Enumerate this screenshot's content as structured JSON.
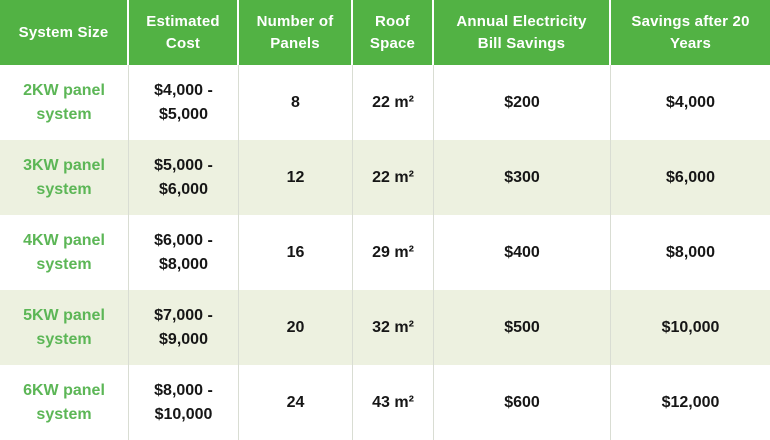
{
  "table": {
    "headers": [
      "System Size",
      "Estimated Cost",
      "Number of Panels",
      "Roof Space",
      "Annual Electricity Bill Savings",
      "Savings after 20 Years"
    ],
    "rows": [
      {
        "system": "2KW panel system",
        "cost": "$4,000 - $5,000",
        "panels": "8",
        "roof": "22 m²",
        "bill_savings": "$200",
        "savings_20yr": "$4,000"
      },
      {
        "system": "3KW panel system",
        "cost": "$5,000 - $6,000",
        "panels": "12",
        "roof": "22 m²",
        "bill_savings": "$300",
        "savings_20yr": "$6,000"
      },
      {
        "system": "4KW panel system",
        "cost": "$6,000 - $8,000",
        "panels": "16",
        "roof": "29 m²",
        "bill_savings": "$400",
        "savings_20yr": "$8,000"
      },
      {
        "system": "5KW panel system",
        "cost": "$7,000 - $9,000",
        "panels": "20",
        "roof": "32 m²",
        "bill_savings": "$500",
        "savings_20yr": "$10,000"
      },
      {
        "system": "6KW panel system",
        "cost": "$8,000 - $10,000",
        "panels": "24",
        "roof": "43 m²",
        "bill_savings": "$600",
        "savings_20yr": "$12,000"
      }
    ]
  },
  "colors": {
    "header_bg": "#52b244",
    "header_text": "#ffffff",
    "row_alt_bg": "#edf1e0",
    "row_bg": "#ffffff",
    "system_text_green": "#5cb656",
    "body_text": "#161616",
    "body_divider": "#d9ddd3"
  }
}
